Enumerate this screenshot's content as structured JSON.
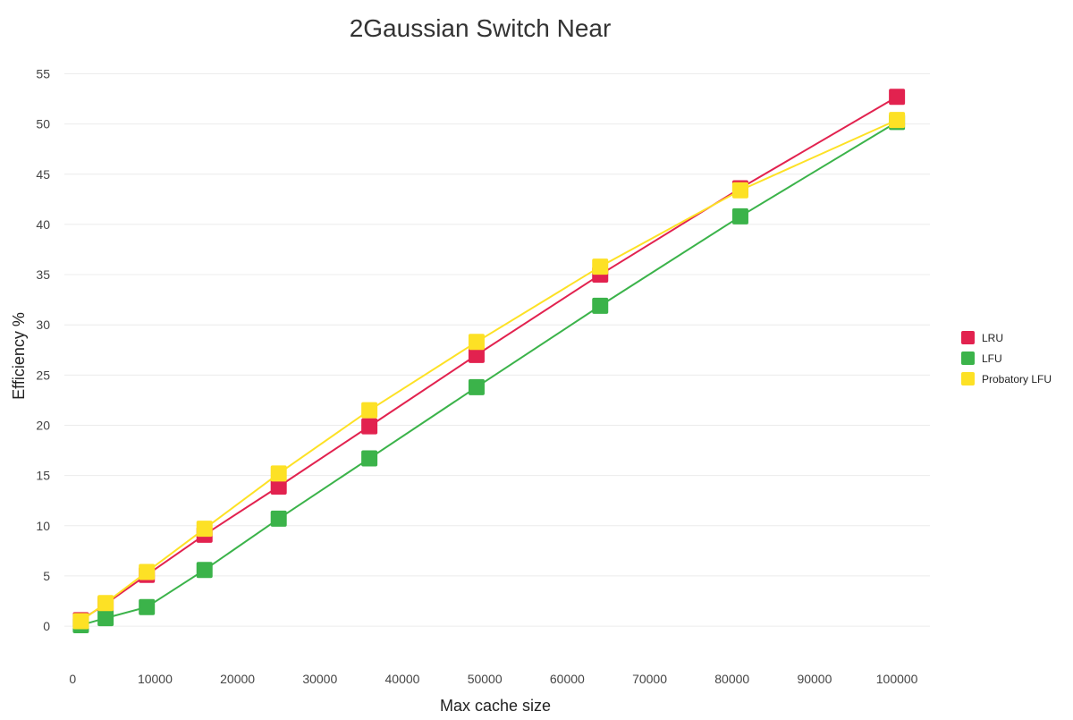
{
  "chart_data": {
    "type": "line",
    "title": "2Gaussian Switch Near",
    "xlabel": "Max cache size",
    "ylabel": "Efficiency %",
    "xlim": [
      -1000,
      104000
    ],
    "ylim": [
      -4,
      57
    ],
    "x_ticks": [
      0,
      10000,
      20000,
      30000,
      40000,
      50000,
      60000,
      70000,
      80000,
      90000,
      100000
    ],
    "y_ticks": [
      0,
      5,
      10,
      15,
      20,
      25,
      30,
      35,
      40,
      45,
      50,
      55
    ],
    "grid": "horizontal",
    "legend_position": "right",
    "marker": "square",
    "x": [
      1000,
      4000,
      9000,
      16000,
      25000,
      36000,
      49000,
      64000,
      81000,
      100000
    ],
    "series": [
      {
        "name": "LRU",
        "color": "#e2224f",
        "values": [
          0.6,
          2.2,
          5.1,
          9.1,
          13.9,
          19.9,
          27.0,
          35.0,
          43.6,
          52.7
        ]
      },
      {
        "name": "LFU",
        "color": "#3bb34a",
        "values": [
          0.1,
          0.8,
          1.9,
          5.6,
          10.7,
          16.7,
          23.8,
          31.9,
          40.8,
          50.2
        ]
      },
      {
        "name": "Probatory LFU",
        "color": "#fde125",
        "values": [
          0.5,
          2.3,
          5.4,
          9.7,
          15.2,
          21.5,
          28.3,
          35.8,
          43.4,
          50.4
        ]
      }
    ]
  }
}
